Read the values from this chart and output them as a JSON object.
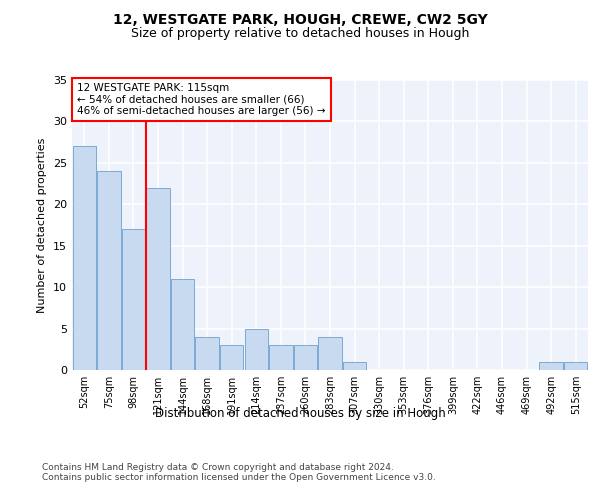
{
  "title1": "12, WESTGATE PARK, HOUGH, CREWE, CW2 5GY",
  "title2": "Size of property relative to detached houses in Hough",
  "xlabel": "Distribution of detached houses by size in Hough",
  "ylabel": "Number of detached properties",
  "categories": [
    "52sqm",
    "75sqm",
    "98sqm",
    "121sqm",
    "144sqm",
    "168sqm",
    "191sqm",
    "214sqm",
    "237sqm",
    "260sqm",
    "283sqm",
    "307sqm",
    "330sqm",
    "353sqm",
    "376sqm",
    "399sqm",
    "422sqm",
    "446sqm",
    "469sqm",
    "492sqm",
    "515sqm"
  ],
  "values": [
    27,
    24,
    17,
    22,
    11,
    4,
    3,
    5,
    3,
    3,
    4,
    1,
    0,
    0,
    0,
    0,
    0,
    0,
    0,
    1,
    1
  ],
  "bar_color": "#c8daf0",
  "bar_edge_color": "#7baad4",
  "annotation_text": "12 WESTGATE PARK: 115sqm\n← 54% of detached houses are smaller (66)\n46% of semi-detached houses are larger (56) →",
  "annotation_box_color": "white",
  "annotation_box_edge_color": "red",
  "vline_color": "red",
  "vline_x": 2.5,
  "ylim": [
    0,
    35
  ],
  "yticks": [
    0,
    5,
    10,
    15,
    20,
    25,
    30,
    35
  ],
  "footer": "Contains HM Land Registry data © Crown copyright and database right 2024.\nContains public sector information licensed under the Open Government Licence v3.0.",
  "background_color": "#eef2fa",
  "grid_color": "white",
  "title1_fontsize": 10,
  "title2_fontsize": 9,
  "xlabel_fontsize": 8.5,
  "ylabel_fontsize": 8,
  "footer_fontsize": 6.5
}
